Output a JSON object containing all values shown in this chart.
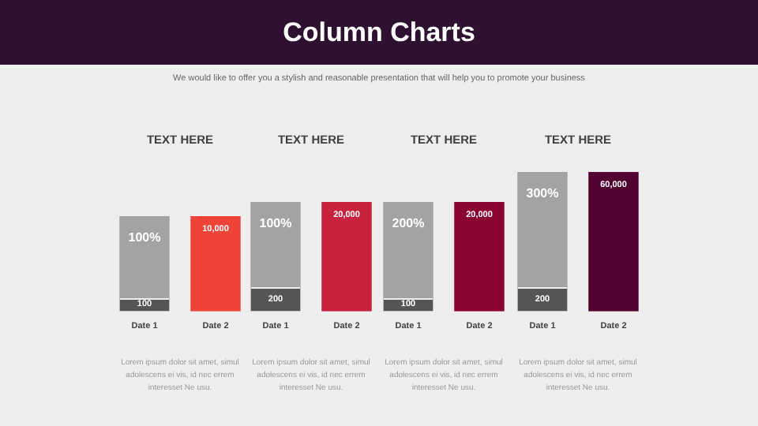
{
  "chart_data": [
    {
      "type": "other",
      "title": "Column Charts",
      "subtitle": "We would like to offer you a stylish and reasonable presentation that will help you to promote your business"
    },
    {
      "type": "bar",
      "title": "TEXT HERE",
      "categories": [
        "Date 1",
        "Date 2"
      ],
      "tick_labels": "x",
      "legend": false,
      "grid": false,
      "annotations": [
        {
          "text": "100",
          "x": "Date 1",
          "y": 0
        },
        "Lorem ipsum dolor sit amet, simul adolescens ei vis, id nec errem interesset Ne usu."
      ],
      "series": [
        {
          "color": "#a3a3a3",
          "axis": "y2",
          "values": [
            100,
            null
          ],
          "value_labels": [
            "100%",
            null
          ]
        },
        {
          "color": "#ef4338",
          "values": [
            null,
            10000
          ],
          "value_labels": [
            null,
            "10,000"
          ]
        }
      ]
    },
    {
      "type": "bar",
      "title": "TEXT HERE",
      "categories": [
        "Date 1",
        "Date 2"
      ],
      "tick_labels": "x",
      "legend": false,
      "grid": false,
      "annotations": [
        {
          "text": "200",
          "x": "Date 1",
          "y": 0
        },
        "Lorem ipsum dolor sit amet, simul adolescens ei vis, id nec errem interesset Ne usu."
      ],
      "series": [
        {
          "color": "#a3a3a3",
          "axis": "y2",
          "values": [
            100,
            null
          ],
          "value_labels": [
            "100%",
            null
          ]
        },
        {
          "color": "#c8223e",
          "values": [
            null,
            20000
          ],
          "value_labels": [
            null,
            "20,000"
          ]
        }
      ]
    },
    {
      "type": "bar",
      "title": "TEXT HERE",
      "categories": [
        "Date 1",
        "Date 2"
      ],
      "tick_labels": "x",
      "legend": false,
      "grid": false,
      "annotations": [
        {
          "text": "100",
          "x": "Date 1",
          "y": 0
        },
        "Lorem ipsum dolor sit amet, simul adolescens ei vis, id nec errem interesset Ne usu."
      ],
      "series": [
        {
          "color": "#a3a3a3",
          "axis": "y2",
          "values": [
            200,
            null
          ],
          "value_labels": [
            "200%",
            null
          ]
        },
        {
          "color": "#8a0232",
          "values": [
            null,
            20000
          ],
          "value_labels": [
            null,
            "20,000"
          ]
        }
      ]
    },
    {
      "type": "bar",
      "title": "TEXT HERE",
      "categories": [
        "Date 1",
        "Date 2"
      ],
      "tick_labels": "x",
      "legend": false,
      "grid": false,
      "annotations": [
        {
          "text": "200",
          "x": "Date 1",
          "y": 0
        },
        "Lorem ipsum dolor sit amet, simul adolescens ei vis, id nec errem interesset Ne usu."
      ],
      "series": [
        {
          "color": "#a3a3a3",
          "axis": "y2",
          "values": [
            300,
            null
          ],
          "value_labels": [
            "300%",
            null
          ]
        },
        {
          "color": "#52002f",
          "values": [
            null,
            60000
          ],
          "value_labels": [
            null,
            "60,000"
          ]
        }
      ]
    }
  ]
}
